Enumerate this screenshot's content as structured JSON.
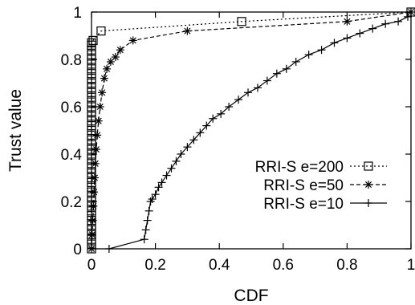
{
  "chart_data": {
    "type": "line",
    "xlabel": "CDF",
    "ylabel": "Trust value",
    "xlim": [
      0,
      1
    ],
    "ylim": [
      0,
      1
    ],
    "xticks": [
      0,
      0.2,
      0.4,
      0.6,
      0.8,
      1
    ],
    "yticks": [
      0,
      0.2,
      0.4,
      0.6,
      0.8,
      1
    ],
    "xtick_labels": [
      "0",
      "0.2",
      "0.4",
      "0.6",
      "0.8",
      "1"
    ],
    "ytick_labels": [
      "0",
      "0.2",
      "0.4",
      "0.6",
      "0.8",
      "1"
    ],
    "grid": false,
    "legend_position": "bottom-right",
    "series": [
      {
        "name": "RRI-S e=200",
        "marker": "square",
        "line": "dotted",
        "color": "#000000",
        "x": [
          0,
          0,
          0,
          0,
          0,
          0,
          0,
          0,
          0,
          0,
          0,
          0,
          0,
          0,
          0,
          0,
          0,
          0,
          0,
          0,
          0,
          0,
          0,
          0,
          0,
          0,
          0,
          0,
          0,
          0,
          0,
          0,
          0,
          0,
          0,
          0,
          0,
          0,
          0,
          0,
          0,
          0,
          0,
          0,
          0,
          0.005,
          0.03,
          0.47,
          1.0
        ],
        "y": [
          0.0,
          0.02,
          0.04,
          0.06,
          0.08,
          0.1,
          0.12,
          0.14,
          0.16,
          0.18,
          0.2,
          0.22,
          0.24,
          0.26,
          0.28,
          0.3,
          0.32,
          0.34,
          0.36,
          0.38,
          0.4,
          0.42,
          0.44,
          0.46,
          0.48,
          0.5,
          0.52,
          0.54,
          0.56,
          0.58,
          0.6,
          0.62,
          0.64,
          0.66,
          0.68,
          0.7,
          0.72,
          0.74,
          0.76,
          0.78,
          0.8,
          0.82,
          0.84,
          0.86,
          0.87,
          0.88,
          0.92,
          0.96,
          1.0
        ]
      },
      {
        "name": "RRI-S e=50",
        "marker": "star",
        "line": "dashed",
        "color": "#000000",
        "x": [
          0,
          0.002,
          0.004,
          0.006,
          0.008,
          0.01,
          0.012,
          0.015,
          0.018,
          0.022,
          0.027,
          0.033,
          0.04,
          0.048,
          0.06,
          0.075,
          0.09,
          0.13,
          0.3,
          0.8,
          1.0
        ],
        "y": [
          0.0,
          0.06,
          0.12,
          0.18,
          0.24,
          0.3,
          0.36,
          0.42,
          0.48,
          0.54,
          0.6,
          0.66,
          0.72,
          0.76,
          0.79,
          0.81,
          0.84,
          0.88,
          0.92,
          0.96,
          1.0
        ],
        "x_fill_lower": 0.005,
        "x_fill_upper_note": "dense markers along left edge"
      },
      {
        "name": "RRI-S e=10",
        "marker": "plus",
        "line": "solid",
        "color": "#000000",
        "x": [
          0.055,
          0.165,
          0.17,
          0.175,
          0.18,
          0.185,
          0.19,
          0.2,
          0.21,
          0.22,
          0.235,
          0.25,
          0.265,
          0.28,
          0.3,
          0.32,
          0.34,
          0.36,
          0.38,
          0.405,
          0.43,
          0.46,
          0.49,
          0.52,
          0.55,
          0.58,
          0.61,
          0.64,
          0.68,
          0.72,
          0.76,
          0.8,
          0.84,
          0.88,
          0.92,
          0.96,
          0.99
        ],
        "y": [
          0.0,
          0.04,
          0.08,
          0.12,
          0.16,
          0.2,
          0.21,
          0.23,
          0.26,
          0.28,
          0.31,
          0.34,
          0.37,
          0.4,
          0.43,
          0.46,
          0.49,
          0.52,
          0.55,
          0.57,
          0.6,
          0.63,
          0.66,
          0.68,
          0.71,
          0.74,
          0.76,
          0.79,
          0.82,
          0.84,
          0.87,
          0.89,
          0.91,
          0.93,
          0.95,
          0.96,
          0.98
        ]
      }
    ]
  }
}
